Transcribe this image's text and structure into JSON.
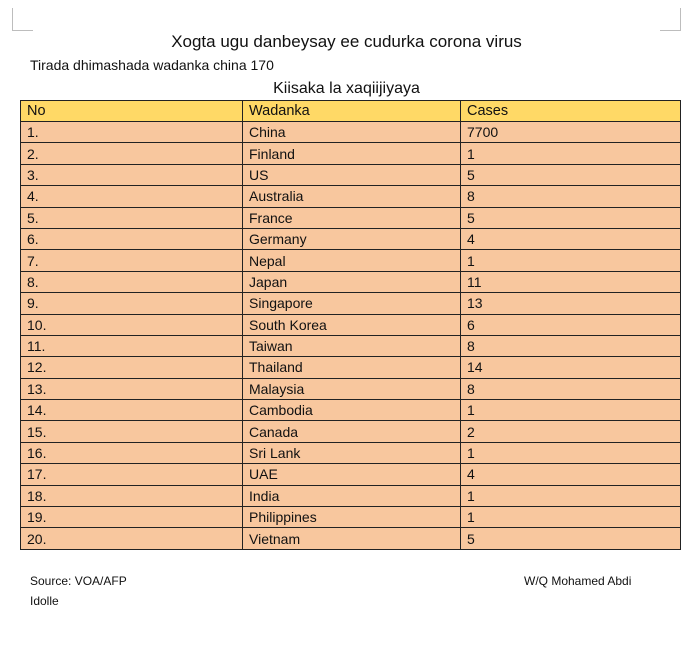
{
  "document": {
    "title": "Xogta ugu danbeysay ee cudurka corona virus",
    "subtitle": "Tirada dhimashada wadanka china 170",
    "table_caption": "Kiisaka la xaqiijiyaya"
  },
  "table": {
    "headers": [
      "No",
      "Wadanka",
      "Cases"
    ],
    "rows": [
      [
        "1.",
        "China",
        "7700"
      ],
      [
        "2.",
        "Finland",
        "1"
      ],
      [
        "3.",
        "US",
        "5"
      ],
      [
        "4.",
        "Australia",
        "8"
      ],
      [
        "5.",
        "France",
        "5"
      ],
      [
        "6.",
        "Germany",
        "4"
      ],
      [
        "7.",
        "Nepal",
        "1"
      ],
      [
        "8.",
        "Japan",
        "11"
      ],
      [
        "9.",
        "Singapore",
        "13"
      ],
      [
        "10.",
        "South Korea",
        "6"
      ],
      [
        "11.",
        "Taiwan",
        "8"
      ],
      [
        "12.",
        "Thailand",
        "14"
      ],
      [
        "13.",
        "Malaysia",
        "8"
      ],
      [
        "14.",
        "Cambodia",
        "1"
      ],
      [
        "15.",
        "Canada",
        "2"
      ],
      [
        "16.",
        "Sri Lank",
        "1"
      ],
      [
        "17.",
        "UAE",
        "4"
      ],
      [
        "18.",
        "India",
        "1"
      ],
      [
        "19.",
        "Philippines",
        "1"
      ],
      [
        "20.",
        "Vietnam",
        "5"
      ]
    ]
  },
  "footer": {
    "source_line1": "Source: VOA/AFP",
    "source_line2": "Idolle",
    "author": "W/Q Mohamed Abdi"
  },
  "colors": {
    "header_fill": "#ffd966",
    "cell_fill": "#f8c79e"
  }
}
